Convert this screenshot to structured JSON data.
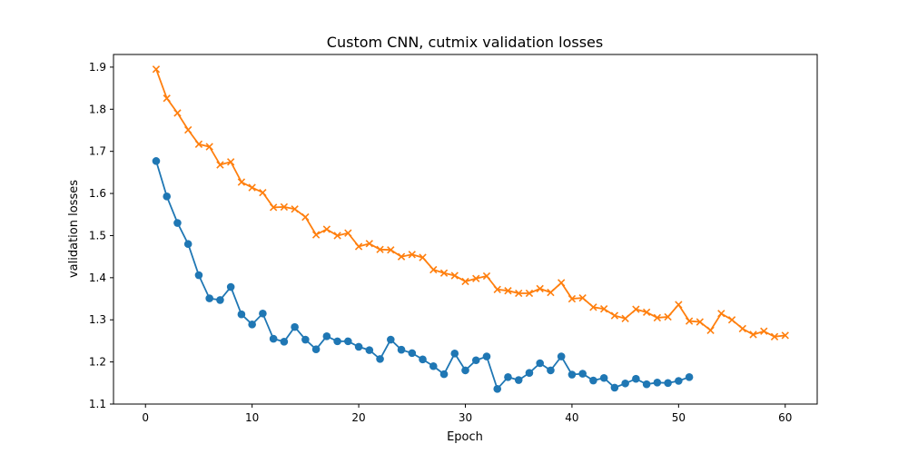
{
  "chart_data": {
    "type": "line",
    "title": "Custom CNN, cutmix validation losses",
    "xlabel": "Epoch",
    "ylabel": "validation losses",
    "xlim": [
      -3,
      63
    ],
    "ylim": [
      1.1,
      1.93
    ],
    "xticks": [
      0,
      10,
      20,
      30,
      40,
      50,
      60
    ],
    "yticks": [
      1.1,
      1.2,
      1.3,
      1.4,
      1.5,
      1.6,
      1.7,
      1.8,
      1.9
    ],
    "grid": false,
    "series": [
      {
        "color": "#1f77b4",
        "marker": "circle",
        "x": [
          1,
          2,
          3,
          4,
          5,
          6,
          7,
          8,
          9,
          10,
          11,
          12,
          13,
          14,
          15,
          16,
          17,
          18,
          19,
          20,
          21,
          22,
          23,
          24,
          25,
          26,
          27,
          28,
          29,
          30,
          31,
          32,
          33,
          34,
          35,
          36,
          37,
          38,
          39,
          40,
          41,
          42,
          43,
          44,
          45,
          46,
          47,
          48,
          49,
          50,
          51
        ],
        "y": [
          1.677,
          1.593,
          1.53,
          1.48,
          1.406,
          1.351,
          1.347,
          1.378,
          1.313,
          1.289,
          1.315,
          1.255,
          1.248,
          1.283,
          1.253,
          1.23,
          1.261,
          1.249,
          1.249,
          1.236,
          1.228,
          1.207,
          1.253,
          1.229,
          1.221,
          1.206,
          1.19,
          1.171,
          1.22,
          1.18,
          1.204,
          1.213,
          1.136,
          1.164,
          1.157,
          1.174,
          1.197,
          1.18,
          1.213,
          1.17,
          1.172,
          1.156,
          1.162,
          1.139,
          1.149,
          1.16,
          1.147,
          1.151,
          1.15,
          1.155,
          1.164
        ]
      },
      {
        "color": "#ff7f0e",
        "marker": "x",
        "x": [
          1,
          2,
          3,
          4,
          5,
          6,
          7,
          8,
          9,
          10,
          11,
          12,
          13,
          14,
          15,
          16,
          17,
          18,
          19,
          20,
          21,
          22,
          23,
          24,
          25,
          26,
          27,
          28,
          29,
          30,
          31,
          32,
          33,
          34,
          35,
          36,
          37,
          38,
          39,
          40,
          41,
          42,
          43,
          44,
          45,
          46,
          47,
          48,
          49,
          50,
          51,
          52,
          53,
          54,
          55,
          56,
          57,
          58,
          59,
          60
        ],
        "y": [
          1.895,
          1.826,
          1.791,
          1.751,
          1.717,
          1.711,
          1.668,
          1.675,
          1.627,
          1.614,
          1.602,
          1.567,
          1.568,
          1.563,
          1.544,
          1.502,
          1.515,
          1.5,
          1.506,
          1.474,
          1.481,
          1.467,
          1.466,
          1.45,
          1.455,
          1.448,
          1.419,
          1.411,
          1.405,
          1.391,
          1.398,
          1.404,
          1.372,
          1.369,
          1.363,
          1.363,
          1.374,
          1.365,
          1.388,
          1.35,
          1.352,
          1.33,
          1.326,
          1.31,
          1.303,
          1.325,
          1.318,
          1.305,
          1.307,
          1.336,
          1.297,
          1.295,
          1.275,
          1.315,
          1.3,
          1.279,
          1.265,
          1.273,
          1.26,
          1.263
        ]
      }
    ]
  }
}
